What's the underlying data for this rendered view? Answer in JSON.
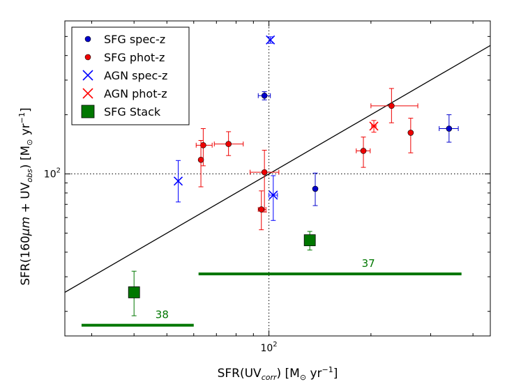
{
  "chart_data": {
    "type": "scatter",
    "xlabel": "SFR(UV_corr) [M_sun yr^-1]",
    "ylabel": "SFR(160μm + UV_obs) [M_sun yr^-1]",
    "x_scale": "log",
    "y_scale": "log",
    "xlim": [
      25,
      450
    ],
    "ylim": [
      15,
      600
    ],
    "tick_labels": {
      "x": "10^2",
      "y": "10^2"
    },
    "reference_lines": [
      {
        "kind": "one-to-one",
        "color": "#000000"
      },
      {
        "kind": "vertical",
        "x": 100,
        "style": "dotted"
      },
      {
        "kind": "horizontal",
        "y": 100,
        "style": "dotted"
      }
    ],
    "legend": {
      "position": "top-left",
      "entries": [
        {
          "label": "SFG spec-z",
          "color": "#0000cc",
          "marker": "circle"
        },
        {
          "label": "SFG phot-z",
          "color": "#ee0000",
          "marker": "circle"
        },
        {
          "label": "AGN spec-z",
          "color": "#0000ff",
          "marker": "x"
        },
        {
          "label": "AGN phot-z",
          "color": "#ff0000",
          "marker": "x"
        },
        {
          "label": "SFG Stack",
          "color": "#007700",
          "marker": "square"
        }
      ]
    },
    "series": [
      {
        "name": "SFG spec-z",
        "color": "#0000cc",
        "marker": "circle",
        "points": [
          {
            "x": 97,
            "y": 250,
            "xerr": [
              4,
              4
            ],
            "yerr": [
              12,
              12
            ]
          },
          {
            "x": 137,
            "y": 84,
            "xerr": [
              0,
              0
            ],
            "yerr": [
              15,
              17
            ]
          },
          {
            "x": 340,
            "y": 170,
            "xerr": [
              22,
              22
            ],
            "yerr": [
              25,
              30
            ]
          }
        ]
      },
      {
        "name": "SFG phot-z",
        "color": "#ee0000",
        "marker": "circle",
        "points": [
          {
            "x": 64,
            "y": 140,
            "xerr": [
              3,
              4
            ],
            "yerr": [
              30,
              30
            ]
          },
          {
            "x": 63,
            "y": 118,
            "xerr": [
              0,
              0
            ],
            "yerr": [
              32,
              30
            ]
          },
          {
            "x": 76,
            "y": 142,
            "xerr": [
              7,
              8
            ],
            "yerr": [
              18,
              22
            ]
          },
          {
            "x": 97,
            "y": 102,
            "xerr": [
              9,
              10
            ],
            "yerr": [
              38,
              30
            ]
          },
          {
            "x": 95,
            "y": 66,
            "xerr": [
              2,
              3
            ],
            "yerr": [
              14,
              16
            ]
          },
          {
            "x": 190,
            "y": 131,
            "xerr": [
              9,
              9
            ],
            "yerr": [
              23,
              23
            ]
          },
          {
            "x": 230,
            "y": 222,
            "xerr": [
              30,
              45
            ],
            "yerr": [
              40,
              50
            ]
          },
          {
            "x": 262,
            "y": 162,
            "xerr": [
              0,
              0
            ],
            "yerr": [
              34,
              30
            ]
          }
        ]
      },
      {
        "name": "AGN spec-z",
        "color": "#0000ff",
        "marker": "x",
        "points": [
          {
            "x": 54,
            "y": 92,
            "xerr": [
              0,
              0
            ],
            "yerr": [
              20,
              25
            ]
          },
          {
            "x": 101,
            "y": 480,
            "xerr": [
              0,
              0
            ],
            "yerr": [
              18,
              18
            ]
          },
          {
            "x": 103,
            "y": 78,
            "xerr": [
              3,
              3
            ],
            "yerr": [
              20,
              20
            ]
          }
        ]
      },
      {
        "name": "AGN phot-z",
        "color": "#ff0000",
        "marker": "x",
        "points": [
          {
            "x": 204,
            "y": 175,
            "xerr": [
              3,
              3
            ],
            "yerr": [
              12,
              12
            ]
          }
        ]
      },
      {
        "name": "SFG Stack",
        "color": "#007700",
        "marker": "square",
        "points": [
          {
            "x": 40,
            "y": 25,
            "xerr": [
              0,
              0
            ],
            "yerr": [
              6,
              7
            ]
          },
          {
            "x": 132,
            "y": 46,
            "xerr": [
              0,
              0
            ],
            "yerr": [
              5,
              5
            ]
          }
        ]
      }
    ],
    "range_bars": [
      {
        "x_start": 28,
        "x_end": 60,
        "y": 17,
        "label": "38",
        "color": "#007700"
      },
      {
        "x_start": 62,
        "x_end": 370,
        "y": 31,
        "label": "37",
        "color": "#007700"
      }
    ]
  }
}
